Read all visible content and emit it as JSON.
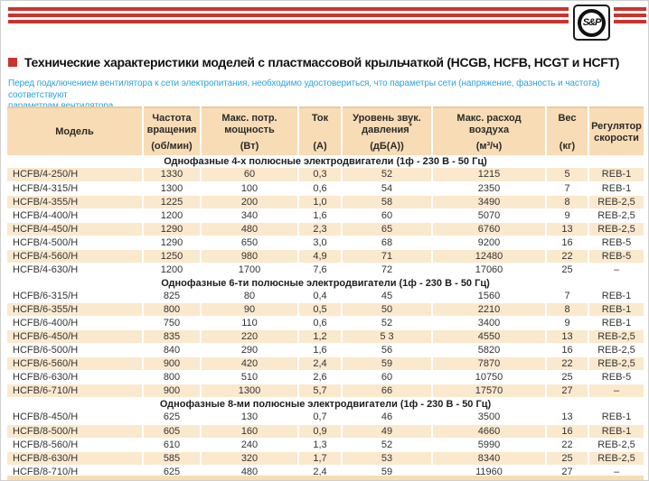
{
  "logo": {
    "text": "S&P"
  },
  "page": {
    "title": "Технические характеристики моделей с пластмассовой крыльчаткой (HCGB, HCFB, HCGT и HCFT)",
    "intro_lines": [
      "Перед подключением вентилятора к сети электропитания, необходимо удостовериться, что параметры сети (напряжение, фазность и частота) соответствуют",
      "параметрам вентилятора."
    ]
  },
  "table": {
    "headers": [
      {
        "key": "model",
        "name": [
          "Модель"
        ],
        "unit": ""
      },
      {
        "key": "speed",
        "name": [
          "Частота",
          "вращения"
        ],
        "unit": "(об/мин)"
      },
      {
        "key": "power",
        "name": [
          "Макс. потр.",
          "мощность"
        ],
        "unit": "(Вт)"
      },
      {
        "key": "current",
        "name": [
          "Ток"
        ],
        "unit": "(А)"
      },
      {
        "key": "noise",
        "name": [
          "Уровень звук.",
          "давления*"
        ],
        "unit": "(дБ(А))"
      },
      {
        "key": "airflow",
        "name": [
          "Макс. расход",
          "воздуха"
        ],
        "unit": "(м³/ч)"
      },
      {
        "key": "weight",
        "name": [
          "Вес"
        ],
        "unit": "(кг)"
      },
      {
        "key": "controller",
        "name": [
          "Регулятор",
          "скорости"
        ],
        "unit": ""
      }
    ],
    "sections": [
      {
        "title": "Однофазные 4-х полюсные электродвигатели (1ф - 230 В - 50 Гц)",
        "first_row_shade": "cream",
        "rows": [
          [
            "HCFB/4-250/H",
            "1330",
            "60",
            "0,3",
            "52",
            "1215",
            "5",
            "REB-1"
          ],
          [
            "HCFB/4-315/H",
            "1300",
            "100",
            "0,6",
            "54",
            "2350",
            "7",
            "REB-1"
          ],
          [
            "HCFB/4-355/H",
            "1225",
            "200",
            "1,0",
            "58",
            "3490",
            "8",
            "REB-2,5"
          ],
          [
            "HCFB/4-400/H",
            "1200",
            "340",
            "1,6",
            "60",
            "5070",
            "9",
            "REB-2,5"
          ],
          [
            "HCFB/4-450/H",
            "1290",
            "480",
            "2,3",
            "65",
            "6760",
            "13",
            "REB-2,5"
          ],
          [
            "HCFB/4-500/H",
            "1290",
            "650",
            "3,0",
            "68",
            "9200",
            "16",
            "REB-5"
          ],
          [
            "HCFB/4-560/H",
            "1250",
            "980",
            "4,9",
            "71",
            "12480",
            "22",
            "REB-5"
          ],
          [
            "HCFB/4-630/H",
            "1200",
            "1700",
            "7,6",
            "72",
            "17060",
            "25",
            "–"
          ]
        ]
      },
      {
        "title": "Однофазные 6-ти полюсные электродвигатели (1ф - 230 В - 50 Гц)",
        "first_row_shade": "white",
        "rows": [
          [
            "HCFB/6-315/H",
            "825",
            "80",
            "0,4",
            "45",
            "1560",
            "7",
            "REB-1"
          ],
          [
            "HCFB/6-355/H",
            "800",
            "90",
            "0,5",
            "50",
            "2210",
            "8",
            "REB-1"
          ],
          [
            "HCFB/6-400/H",
            "750",
            "110",
            "0,6",
            "52",
            "3400",
            "9",
            "REB-1"
          ],
          [
            "HCFB/6-450/H",
            "835",
            "220",
            "1,2",
            "5 3",
            "4550",
            "13",
            "REB-2,5"
          ],
          [
            "HCFB/6-500/H",
            "840",
            "290",
            "1,6",
            "56",
            "5820",
            "16",
            "REB-2,5"
          ],
          [
            "HCFB/6-560/H",
            "900",
            "420",
            "2,4",
            "59",
            "7870",
            "22",
            "REB-2,5"
          ],
          [
            "HCFB/6-630/H",
            "800",
            "510",
            "2,6",
            "60",
            "10750",
            "25",
            "REB-5"
          ],
          [
            "HCFB/6-710/H",
            "900",
            "1300",
            "5,7",
            "66",
            "17570",
            "27",
            "–"
          ]
        ]
      },
      {
        "title": "Однофазные 8-ми полюсные электродвигатели (1ф - 230 В - 50 Гц)",
        "first_row_shade": "white",
        "rows": [
          [
            "HCFB/8-450/H",
            "625",
            "130",
            "0,7",
            "46",
            "3500",
            "13",
            "REB-1"
          ],
          [
            "HCFB/8-500/H",
            "605",
            "160",
            "0,9",
            "49",
            "4660",
            "16",
            "REB-1"
          ],
          [
            "HCFB/8-560/H",
            "610",
            "240",
            "1,3",
            "52",
            "5990",
            "22",
            "REB-2,5"
          ],
          [
            "HCFB/8-630/H",
            "585",
            "320",
            "1,7",
            "53",
            "8340",
            "25",
            "REB-2,5"
          ],
          [
            "HCFB/8-710/H",
            "625",
            "480",
            "2,4",
            "59",
            "11960",
            "27",
            "–"
          ]
        ]
      }
    ]
  },
  "colors": {
    "accent_red": "#c9342e",
    "header_bg": "#f8dcb5",
    "row_cream": "#fbe9ce",
    "intro_blue": "#2ba4db"
  }
}
